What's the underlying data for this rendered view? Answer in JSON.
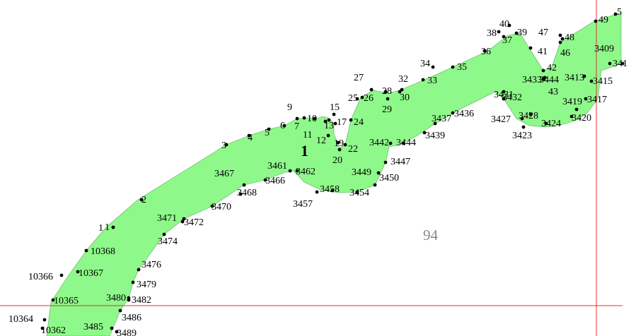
{
  "map": {
    "parcel_label": "1",
    "neighbor_label": "94",
    "fill_color": "#8ef98a",
    "vertex_labels": [
      "1",
      "2",
      "3",
      "4",
      "5",
      "6",
      "7",
      "9",
      "10",
      "11",
      "12",
      "13",
      "15",
      "17",
      "19",
      "20",
      "22",
      "24",
      "25",
      "26",
      "27",
      "28",
      "29",
      "30",
      "32",
      "33",
      "34",
      "35",
      "36",
      "37",
      "38",
      "39",
      "40",
      "41",
      "42",
      "43",
      "46",
      "47",
      "48",
      "49",
      "5",
      "3409",
      "341",
      "3413",
      "3415",
      "3417",
      "3419",
      "3420",
      "3423",
      "3424",
      "3427",
      "3428",
      "3431",
      "3432",
      "3433",
      "3444",
      "3436",
      "3437",
      "3439",
      "3442",
      "3444",
      "3447",
      "3449",
      "3450",
      "3454",
      "3457",
      "3458",
      "3461",
      "3462",
      "3466",
      "3467",
      "3468",
      "3470",
      "3471",
      "3472",
      "3474",
      "3476",
      "3479",
      "3480",
      "3482",
      "3485",
      "3486",
      "3489",
      "10362",
      "10364",
      "10365",
      "10366",
      "10367",
      "10368",
      "1"
    ]
  }
}
